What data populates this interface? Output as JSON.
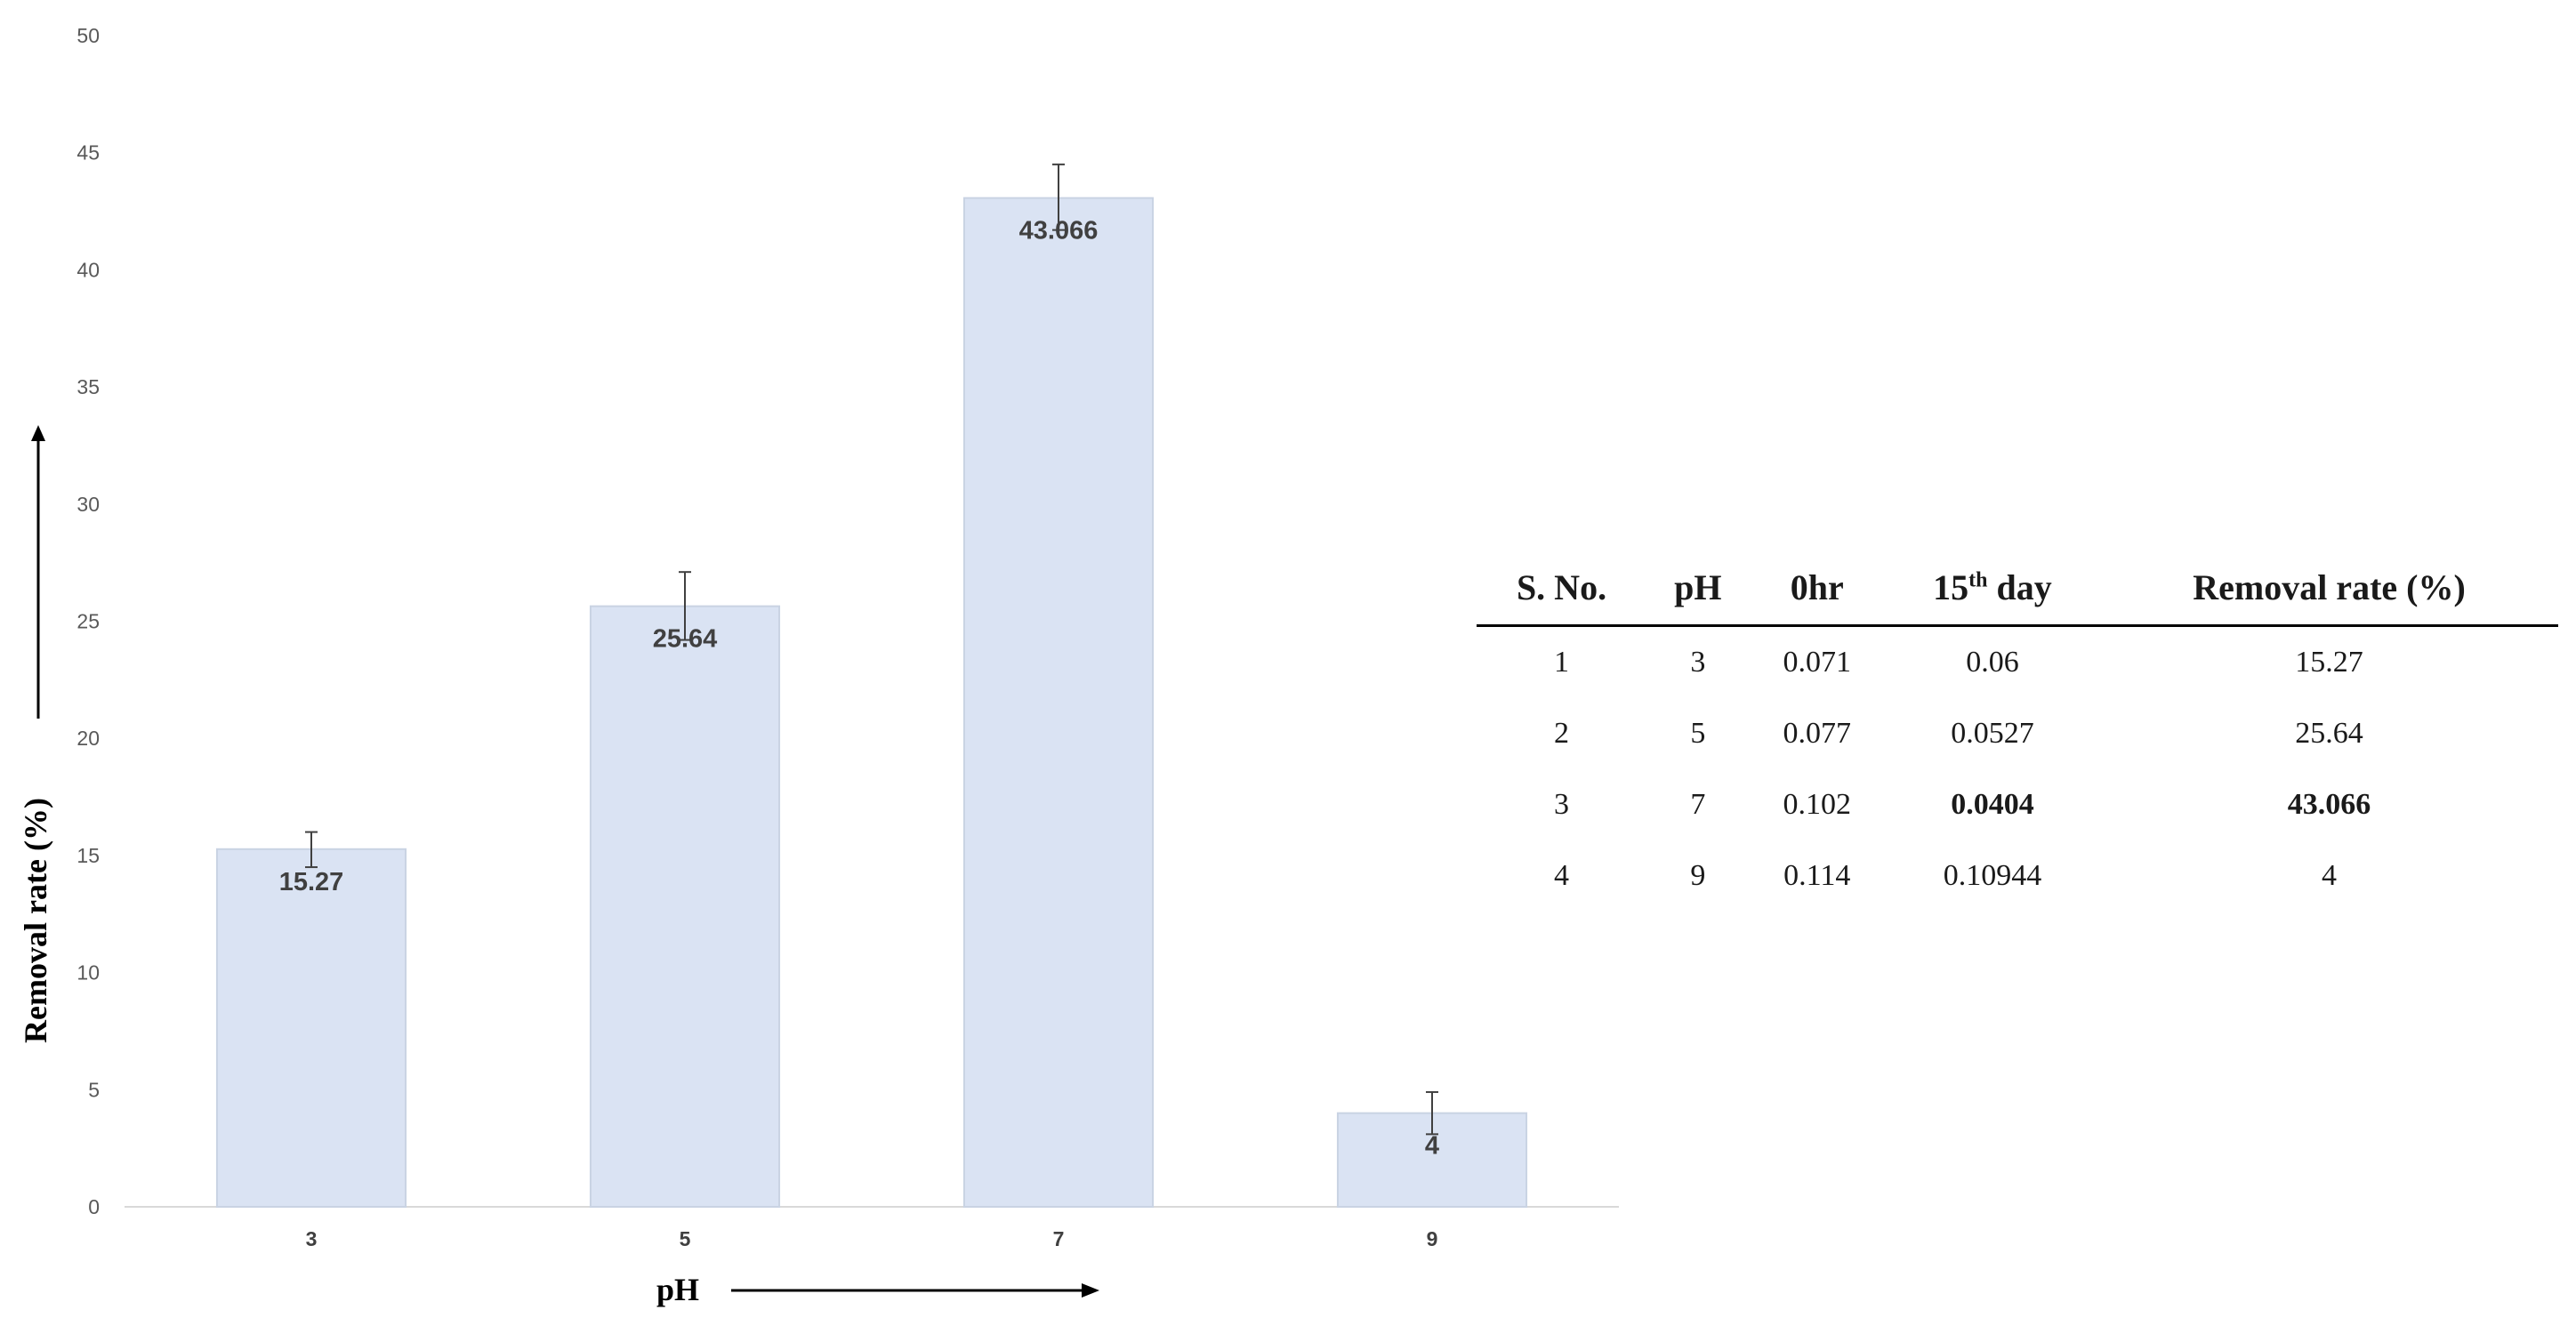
{
  "chart_data": {
    "type": "bar",
    "categories": [
      "3",
      "5",
      "7",
      "9"
    ],
    "values": [
      15.27,
      25.64,
      43.066,
      4
    ],
    "error_upper": [
      16.0,
      27.1,
      44.5,
      4.9
    ],
    "error_lower": [
      14.5,
      24.2,
      41.7,
      3.1
    ],
    "data_labels": [
      "15.27",
      "25.64",
      "43.066",
      "4"
    ],
    "y_ticks": [
      "0",
      "5",
      "10",
      "15",
      "20",
      "25",
      "30",
      "35",
      "40",
      "45",
      "50"
    ],
    "xlabel": "pH",
    "ylabel": "Removal rate (%)",
    "ylim": [
      0,
      50
    ],
    "grid": false,
    "bar_color": "#dae3f3",
    "bar_edge_color": "#c9d3e3"
  },
  "table": {
    "headers": {
      "sno": "S. No.",
      "ph": "pH",
      "zero_hr": "0hr",
      "day_num": "15",
      "day_sup": "th",
      "day_text": " day",
      "removal": "Removal rate (%)"
    },
    "rows": [
      {
        "sno": "1",
        "ph": "3",
        "zero_hr": "0.071",
        "day15": "0.06",
        "removal": "15.27"
      },
      {
        "sno": "2",
        "ph": "5",
        "zero_hr": "0.077",
        "day15": "0.0527",
        "removal": "25.64"
      },
      {
        "sno": "3",
        "ph": "7",
        "zero_hr": "0.102",
        "day15": "0.0404",
        "removal": "43.066"
      },
      {
        "sno": "4",
        "ph": "9",
        "zero_hr": "0.114",
        "day15": "0.10944",
        "removal": "4"
      }
    ]
  }
}
